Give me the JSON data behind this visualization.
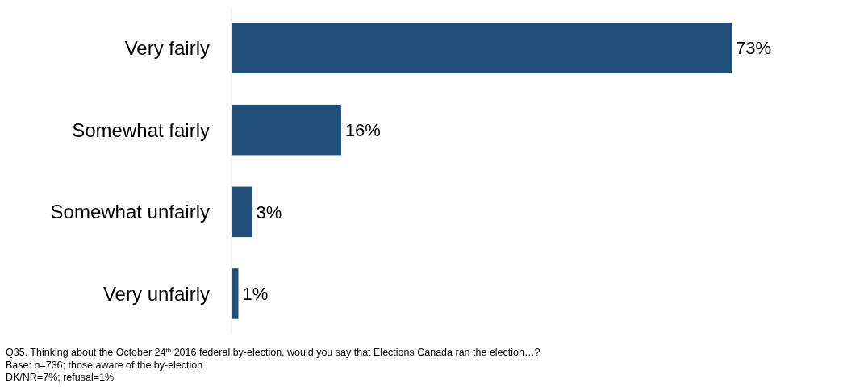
{
  "chart_data": {
    "type": "bar",
    "orientation": "horizontal",
    "categories": [
      "Very fairly",
      "Somewhat fairly",
      "Somewhat unfairly",
      "Very unfairly"
    ],
    "values": [
      73,
      16,
      3,
      1
    ],
    "value_labels": [
      "73%",
      "16%",
      "3%",
      "1%"
    ],
    "color": "#1f4e79",
    "annotations": [
      "Q35. Thinking about the October 24$^{th}$ 2016 federal by-election, would you say that Elections Canada ran the election…?",
      "Base: n=736; those aware of the by-election",
      "DK/NR=7%; refusal=1%"
    ]
  }
}
